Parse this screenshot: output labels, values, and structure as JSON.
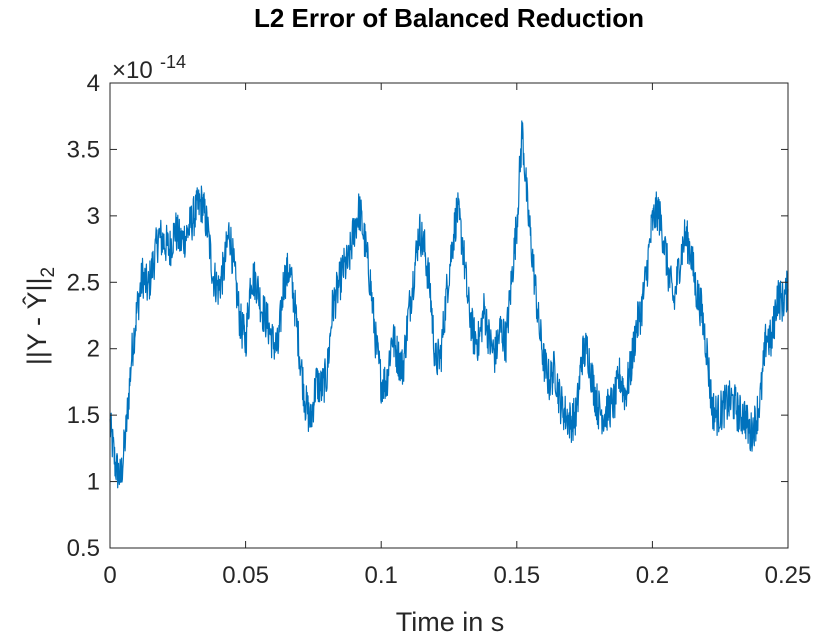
{
  "chart_data": {
    "type": "line",
    "title": "L2 Error of Balanced Reduction",
    "xlabel": "Time in s",
    "ylabel": "||Y - Ŷ||",
    "ylabel_subscript": "2",
    "y_multiplier_text": "×10",
    "y_multiplier_exponent": "-14",
    "xlim": [
      0,
      0.25
    ],
    "ylim": [
      0.5,
      4
    ],
    "x_ticks": [
      0,
      0.05,
      0.1,
      0.15,
      0.2,
      0.25
    ],
    "x_tick_labels": [
      "0",
      "0.05",
      "0.1",
      "0.15",
      "0.2",
      "0.25"
    ],
    "y_ticks": [
      0.5,
      1,
      1.5,
      2,
      2.5,
      3,
      3.5,
      4
    ],
    "y_tick_labels": [
      "0.5",
      "1",
      "1.5",
      "2",
      "2.5",
      "3",
      "3.5",
      "4"
    ],
    "grid": false,
    "line_color": "#0072bd",
    "series": [
      {
        "x": [
          0,
          0.002,
          0.004,
          0.006,
          0.008,
          0.01,
          0.012,
          0.014,
          0.016,
          0.018,
          0.02,
          0.022,
          0.024,
          0.026,
          0.028,
          0.03,
          0.032,
          0.034,
          0.036,
          0.038,
          0.04,
          0.042,
          0.044,
          0.046,
          0.048,
          0.05,
          0.052,
          0.054,
          0.056,
          0.058,
          0.06,
          0.062,
          0.064,
          0.066,
          0.068,
          0.07,
          0.072,
          0.074,
          0.076,
          0.078,
          0.08,
          0.082,
          0.084,
          0.086,
          0.088,
          0.09,
          0.092,
          0.094,
          0.096,
          0.098,
          0.1,
          0.102,
          0.104,
          0.106,
          0.108,
          0.11,
          0.112,
          0.114,
          0.116,
          0.118,
          0.12,
          0.122,
          0.124,
          0.126,
          0.128,
          0.13,
          0.132,
          0.134,
          0.136,
          0.138,
          0.14,
          0.142,
          0.144,
          0.146,
          0.148,
          0.15,
          0.152,
          0.154,
          0.156,
          0.158,
          0.16,
          0.162,
          0.164,
          0.166,
          0.168,
          0.17,
          0.172,
          0.174,
          0.176,
          0.178,
          0.18,
          0.182,
          0.184,
          0.186,
          0.188,
          0.19,
          0.192,
          0.194,
          0.196,
          0.198,
          0.2,
          0.202,
          0.204,
          0.206,
          0.208,
          0.21,
          0.212,
          0.214,
          0.216,
          0.218,
          0.22,
          0.222,
          0.224,
          0.226,
          0.228,
          0.23,
          0.232,
          0.234,
          0.236,
          0.238,
          0.24,
          0.242,
          0.244,
          0.246,
          0.248,
          0.25
        ],
        "y": [
          1.42,
          1.12,
          1.02,
          1.4,
          1.95,
          2.3,
          2.55,
          2.45,
          2.65,
          2.85,
          2.8,
          2.75,
          2.9,
          2.8,
          2.85,
          2.95,
          3.05,
          3.1,
          2.9,
          2.55,
          2.45,
          2.6,
          2.9,
          2.55,
          2.2,
          2.05,
          2.55,
          2.5,
          2.3,
          2.2,
          2.05,
          2.0,
          2.5,
          2.6,
          2.35,
          1.95,
          1.6,
          1.45,
          1.75,
          1.7,
          1.8,
          2.3,
          2.45,
          2.6,
          2.65,
          2.9,
          3.05,
          2.8,
          2.5,
          2.05,
          1.75,
          1.75,
          2.1,
          1.95,
          1.85,
          2.25,
          2.55,
          2.9,
          2.75,
          2.45,
          1.9,
          1.95,
          2.4,
          2.75,
          3.05,
          2.8,
          2.35,
          2.1,
          2.05,
          2.3,
          2.05,
          1.95,
          2.15,
          2.05,
          2.5,
          2.95,
          3.65,
          3.05,
          2.65,
          2.2,
          1.9,
          1.75,
          1.85,
          1.6,
          1.5,
          1.45,
          1.5,
          1.95,
          2.0,
          1.75,
          1.55,
          1.5,
          1.55,
          1.6,
          1.8,
          1.65,
          1.85,
          2.15,
          2.3,
          2.6,
          2.95,
          3.05,
          2.85,
          2.55,
          2.35,
          2.65,
          2.85,
          2.75,
          2.45,
          2.3,
          2.0,
          1.55,
          1.5,
          1.55,
          1.6,
          1.6,
          1.5,
          1.5,
          1.35,
          1.45,
          1.65,
          2.1,
          2.05,
          2.4,
          2.35,
          2.45
        ]
      }
    ]
  }
}
